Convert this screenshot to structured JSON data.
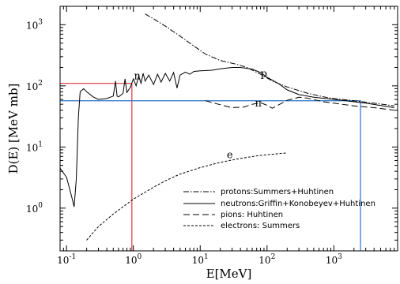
{
  "chart_data": {
    "type": "line",
    "xlabel": "E[MeV]",
    "ylabel": "D(E) [MeV mb]",
    "xscale": "log",
    "yscale": "log",
    "xlim": [
      0.08,
      9000
    ],
    "ylim": [
      0.2,
      2000
    ],
    "grid": false,
    "legend_position": "bottom-right",
    "x_ticks": [
      {
        "value": 0.1,
        "base": "10",
        "exp": "-1"
      },
      {
        "value": 1,
        "base": "10",
        "exp": "0"
      },
      {
        "value": 10,
        "base": "10",
        "exp": "1"
      },
      {
        "value": 100,
        "base": "10",
        "exp": "2"
      },
      {
        "value": 1000,
        "base": "10",
        "exp": "3"
      }
    ],
    "y_ticks": [
      {
        "value": 1,
        "base": "10",
        "exp": "0"
      },
      {
        "value": 10,
        "base": "10",
        "exp": "1"
      },
      {
        "value": 100,
        "base": "10",
        "exp": "2"
      },
      {
        "value": 1000,
        "base": "10",
        "exp": "3"
      }
    ],
    "series": [
      {
        "name": "protons:Summers+Huhtinen",
        "dash": "dashdot",
        "points": [
          [
            1.5,
            1500
          ],
          [
            2,
            1250
          ],
          [
            3,
            950
          ],
          [
            5,
            650
          ],
          [
            8,
            450
          ],
          [
            12,
            330
          ],
          [
            20,
            260
          ],
          [
            35,
            225
          ],
          [
            50,
            200
          ],
          [
            80,
            155
          ],
          [
            120,
            120
          ],
          [
            200,
            96
          ],
          [
            400,
            76
          ],
          [
            700,
            66
          ],
          [
            1000,
            62
          ],
          [
            2000,
            57
          ],
          [
            4000,
            52
          ],
          [
            8000,
            47
          ]
        ]
      },
      {
        "name": "neutrons:Griffin+Konobeyev+Huhtinen",
        "dash": "solid",
        "points": [
          [
            0.08,
            4.5
          ],
          [
            0.1,
            3.2
          ],
          [
            0.12,
            1.5
          ],
          [
            0.13,
            1.05
          ],
          [
            0.14,
            3
          ],
          [
            0.15,
            30
          ],
          [
            0.16,
            80
          ],
          [
            0.18,
            90
          ],
          [
            0.2,
            80
          ],
          [
            0.25,
            66
          ],
          [
            0.3,
            60
          ],
          [
            0.4,
            62
          ],
          [
            0.5,
            68
          ],
          [
            0.54,
            120
          ],
          [
            0.57,
            68
          ],
          [
            0.6,
            66
          ],
          [
            0.7,
            75
          ],
          [
            0.75,
            130
          ],
          [
            0.8,
            78
          ],
          [
            0.9,
            95
          ],
          [
            1.0,
            130
          ],
          [
            1.1,
            100
          ],
          [
            1.2,
            145
          ],
          [
            1.3,
            110
          ],
          [
            1.4,
            160
          ],
          [
            1.5,
            120
          ],
          [
            1.7,
            150
          ],
          [
            2,
            105
          ],
          [
            2.3,
            155
          ],
          [
            2.6,
            115
          ],
          [
            3,
            160
          ],
          [
            3.5,
            120
          ],
          [
            4,
            165
          ],
          [
            4.5,
            92
          ],
          [
            5,
            150
          ],
          [
            6,
            168
          ],
          [
            7,
            155
          ],
          [
            8,
            172
          ],
          [
            10,
            176
          ],
          [
            15,
            180
          ],
          [
            20,
            190
          ],
          [
            30,
            200
          ],
          [
            40,
            200
          ],
          [
            60,
            188
          ],
          [
            80,
            165
          ],
          [
            100,
            138
          ],
          [
            150,
            108
          ],
          [
            200,
            86
          ],
          [
            300,
            72
          ],
          [
            500,
            65
          ],
          [
            1000,
            60
          ],
          [
            3000,
            52
          ],
          [
            8000,
            44
          ]
        ]
      },
      {
        "name": "pions: Huhtinen",
        "dash": "dashed",
        "points": [
          [
            12,
            57
          ],
          [
            20,
            49
          ],
          [
            30,
            44
          ],
          [
            45,
            45
          ],
          [
            60,
            50
          ],
          [
            80,
            53
          ],
          [
            100,
            48
          ],
          [
            120,
            43
          ],
          [
            200,
            58
          ],
          [
            300,
            65
          ],
          [
            400,
            63
          ],
          [
            700,
            55
          ],
          [
            1000,
            52
          ],
          [
            2000,
            47
          ],
          [
            4000,
            44
          ],
          [
            8000,
            40
          ]
        ]
      },
      {
        "name": "electrons: Summers",
        "dash": "dotted",
        "points": [
          [
            0.2,
            0.3
          ],
          [
            0.3,
            0.5
          ],
          [
            0.5,
            0.8
          ],
          [
            1,
            1.4
          ],
          [
            2,
            2.2
          ],
          [
            3,
            2.8
          ],
          [
            5,
            3.6
          ],
          [
            10,
            4.6
          ],
          [
            20,
            5.6
          ],
          [
            40,
            6.5
          ],
          [
            80,
            7.3
          ],
          [
            200,
            8.0
          ]
        ]
      }
    ],
    "annotations": [
      {
        "text": "n",
        "x": 1.02,
        "y": 128
      },
      {
        "text": "p",
        "x": 80,
        "y": 140
      },
      {
        "text": "π",
        "x": 66,
        "y": 46
      },
      {
        "text": "e",
        "x": 25,
        "y": 6.6
      }
    ],
    "reference_lines": [
      {
        "color": "#e0474c",
        "points": [
          [
            0.08,
            110
          ],
          [
            0.95,
            110
          ],
          [
            0.95,
            0.2
          ]
        ]
      },
      {
        "color": "#3a7ecb",
        "points": [
          [
            0.08,
            57
          ],
          [
            2500,
            57
          ],
          [
            2500,
            0.2
          ]
        ]
      }
    ]
  }
}
